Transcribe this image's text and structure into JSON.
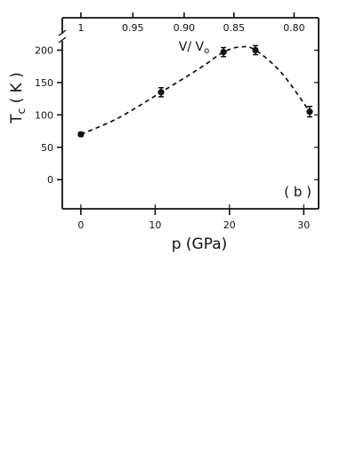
{
  "chart_data": {
    "type": "scatter",
    "title": "",
    "panel_label": "( b )",
    "xlabel": "p (GPa)",
    "ylabel": "Tc (K)",
    "top_axis_label": "V/V₀",
    "top_axis_label_main": "V/ V",
    "top_axis_label_sub": "o",
    "ylabel_main": "T",
    "ylabel_sub": "c",
    "ylabel_unit": "( K )",
    "xlim": [
      -2.5,
      32
    ],
    "ylim": [
      -45,
      250
    ],
    "xticks": [
      0,
      10,
      20,
      30
    ],
    "yticks": [
      0,
      50,
      100,
      150,
      200
    ],
    "top_ticks": [
      {
        "label": "1",
        "p": 0.0
      },
      {
        "label": "0.95",
        "p": 7.0
      },
      {
        "label": "0.90",
        "p": 13.9
      },
      {
        "label": "0.85",
        "p": 20.6
      },
      {
        "label": "0.80",
        "p": 28.7
      }
    ],
    "series": [
      {
        "marker": "filled-circle",
        "points": [
          {
            "x": 0.0,
            "y": 70,
            "err": 3
          },
          {
            "x": 10.8,
            "y": 135,
            "err": 7
          },
          {
            "x": 19.2,
            "y": 197,
            "err": 7
          },
          {
            "x": 23.5,
            "y": 200,
            "err": 7
          },
          {
            "x": 30.8,
            "y": 105,
            "err": 8
          }
        ]
      }
    ],
    "guide_curve": {
      "style": "dashed",
      "points": [
        [
          0,
          70
        ],
        [
          5,
          95
        ],
        [
          10.8,
          135
        ],
        [
          16,
          172
        ],
        [
          19.2,
          197
        ],
        [
          21.5,
          205
        ],
        [
          23.5,
          200
        ],
        [
          27,
          165
        ],
        [
          30.8,
          105
        ]
      ]
    },
    "axis_break_on_left": true,
    "grid": false,
    "legend": "none"
  }
}
